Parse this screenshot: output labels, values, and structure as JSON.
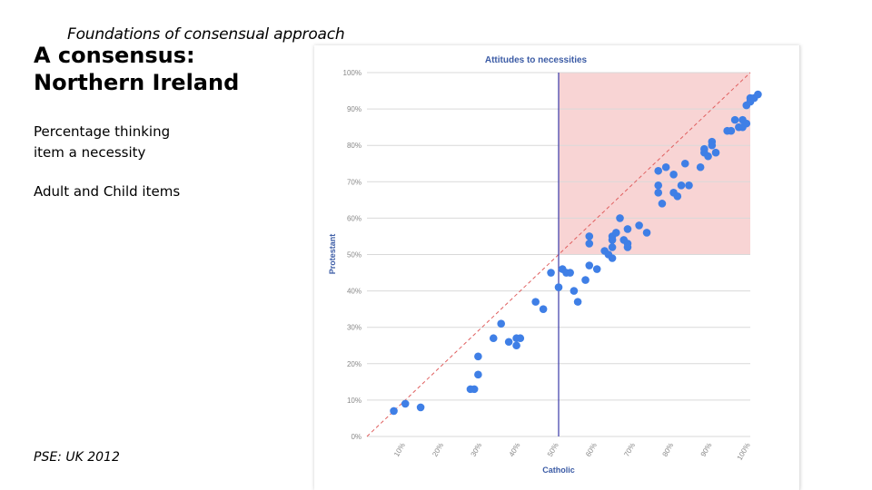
{
  "slide": {
    "subtitle": "Foundations of consensual approach",
    "title_line1": "A consensus:",
    "title_line2": "Northern Ireland",
    "body_line1": "Percentage thinking",
    "body_line2": "item a necessity",
    "body2": "Adult and Child items",
    "source": "PSE: UK 2012"
  },
  "chart_data": {
    "type": "scatter",
    "title": "Attitudes to necessities",
    "xlabel": "Catholic",
    "ylabel": "Protestant",
    "xlim": [
      0,
      100
    ],
    "ylim": [
      0,
      100
    ],
    "x_ticks": [
      "10%",
      "20%",
      "30%",
      "40%",
      "50%",
      "60%",
      "70%",
      "80%",
      "90%",
      "100%"
    ],
    "y_ticks": [
      "0%",
      "10%",
      "20%",
      "30%",
      "40%",
      "50%",
      "60%",
      "70%",
      "80%",
      "90%",
      "100%"
    ],
    "grid": true,
    "reference_line": "y = x",
    "vertical_line_x": 50,
    "highlight_region": {
      "x": [
        50,
        100
      ],
      "y": [
        50,
        100
      ]
    },
    "colors": {
      "points": "#3f7fe6",
      "region": "#f8d4d4",
      "diagonal": "#e06060",
      "vline": "#3a3aa8",
      "title": "#3b5ba5",
      "ticks": "#888888"
    },
    "points": [
      [
        7,
        7
      ],
      [
        10,
        9
      ],
      [
        14,
        8
      ],
      [
        27,
        13
      ],
      [
        28,
        13
      ],
      [
        29,
        17
      ],
      [
        29,
        22
      ],
      [
        33,
        27
      ],
      [
        35,
        31
      ],
      [
        37,
        26
      ],
      [
        39,
        25
      ],
      [
        39,
        27
      ],
      [
        40,
        27
      ],
      [
        44,
        37
      ],
      [
        46,
        35
      ],
      [
        48,
        45
      ],
      [
        50,
        41
      ],
      [
        51,
        46
      ],
      [
        52,
        45
      ],
      [
        53,
        45
      ],
      [
        54,
        40
      ],
      [
        55,
        37
      ],
      [
        57,
        43
      ],
      [
        58,
        47
      ],
      [
        58,
        53
      ],
      [
        58,
        55
      ],
      [
        60,
        46
      ],
      [
        62,
        51
      ],
      [
        63,
        50
      ],
      [
        64,
        54
      ],
      [
        64,
        55
      ],
      [
        64,
        52
      ],
      [
        64,
        49
      ],
      [
        65,
        56
      ],
      [
        66,
        60
      ],
      [
        67,
        54
      ],
      [
        68,
        53
      ],
      [
        68,
        52
      ],
      [
        68,
        57
      ],
      [
        71,
        58
      ],
      [
        73,
        56
      ],
      [
        76,
        73
      ],
      [
        76,
        69
      ],
      [
        76,
        67
      ],
      [
        77,
        64
      ],
      [
        78,
        74
      ],
      [
        80,
        72
      ],
      [
        80,
        67
      ],
      [
        81,
        66
      ],
      [
        82,
        69
      ],
      [
        83,
        75
      ],
      [
        84,
        69
      ],
      [
        87,
        74
      ],
      [
        88,
        79
      ],
      [
        88,
        78
      ],
      [
        89,
        77
      ],
      [
        90,
        81
      ],
      [
        90,
        80
      ],
      [
        91,
        78
      ],
      [
        94,
        84
      ],
      [
        95,
        84
      ],
      [
        96,
        87
      ],
      [
        97,
        85
      ],
      [
        98,
        87
      ],
      [
        98,
        85
      ],
      [
        99,
        86
      ],
      [
        99,
        91
      ],
      [
        100,
        92
      ],
      [
        100,
        93
      ],
      [
        101,
        93
      ],
      [
        102,
        94
      ]
    ]
  }
}
